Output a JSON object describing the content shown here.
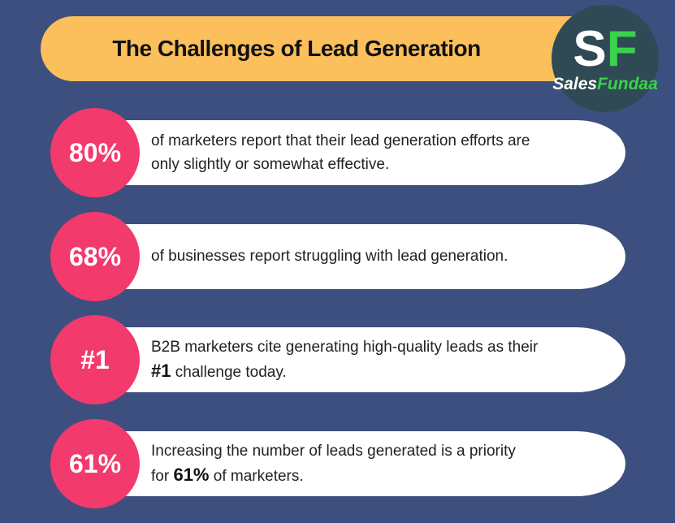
{
  "header": {
    "title": "The Challenges of Lead Generation"
  },
  "logo": {
    "initial_1": "S",
    "initial_2": "F",
    "name_1": "Sales",
    "name_2": "Fundaa"
  },
  "items": [
    {
      "badge": "80%",
      "lines": [
        [
          {
            "text": "of marketers report that their lead generation efforts are"
          }
        ],
        [
          {
            "text": "only slightly or somewhat effective."
          }
        ]
      ]
    },
    {
      "badge": "68%",
      "lines": [
        [
          {
            "text": "of businesses report struggling with lead generation."
          }
        ]
      ]
    },
    {
      "badge": "#1",
      "lines": [
        [
          {
            "text": "B2B marketers cite generating high-quality leads as their"
          }
        ],
        [
          {
            "text": "#1",
            "bold": true
          },
          {
            "text": " challenge today."
          }
        ]
      ]
    },
    {
      "badge": "61%",
      "lines": [
        [
          {
            "text": "Increasing the number of leads generated is a priority"
          }
        ],
        [
          {
            "text": "for "
          },
          {
            "text": "61%",
            "bold": true
          },
          {
            "text": " of marketers."
          }
        ]
      ]
    }
  ]
}
